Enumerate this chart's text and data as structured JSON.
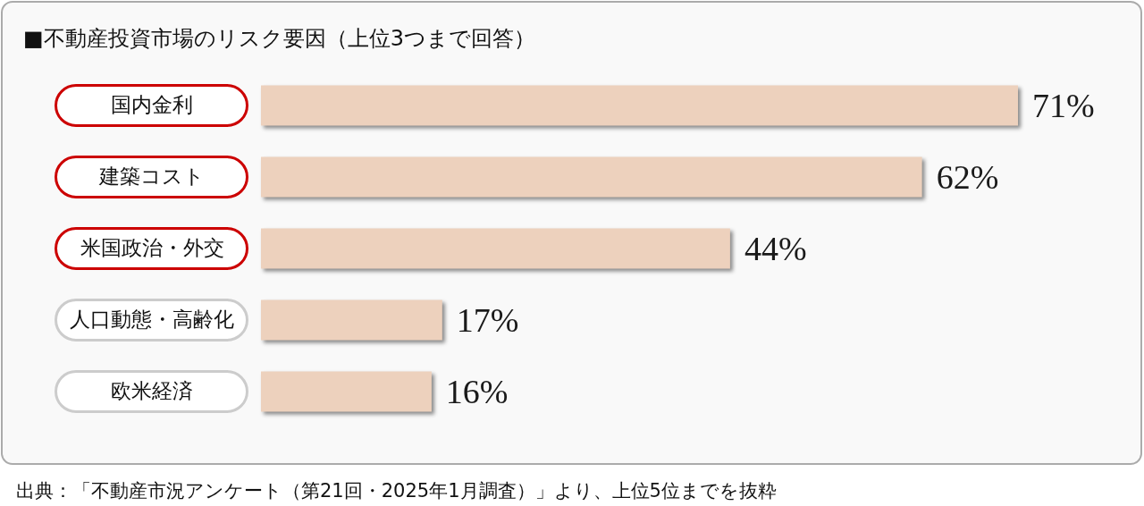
{
  "chart_data": {
    "type": "bar",
    "orientation": "horizontal",
    "title": "■不動産投資市場のリスク要因（上位3つまで回答）",
    "categories": [
      "国内金利",
      "建築コスト",
      "米国政治・外交",
      "人口動態・高齢化",
      "欧米経済"
    ],
    "values": [
      71,
      62,
      44,
      17,
      16
    ],
    "value_labels": [
      "71%",
      "62%",
      "44%",
      "17%",
      "16%"
    ],
    "color": "#edd1bd",
    "annotations": [
      "出典：「不動産市況アンケート（第21回・2025年1月調査）」より、上位5位までを抜粋"
    ]
  }
}
